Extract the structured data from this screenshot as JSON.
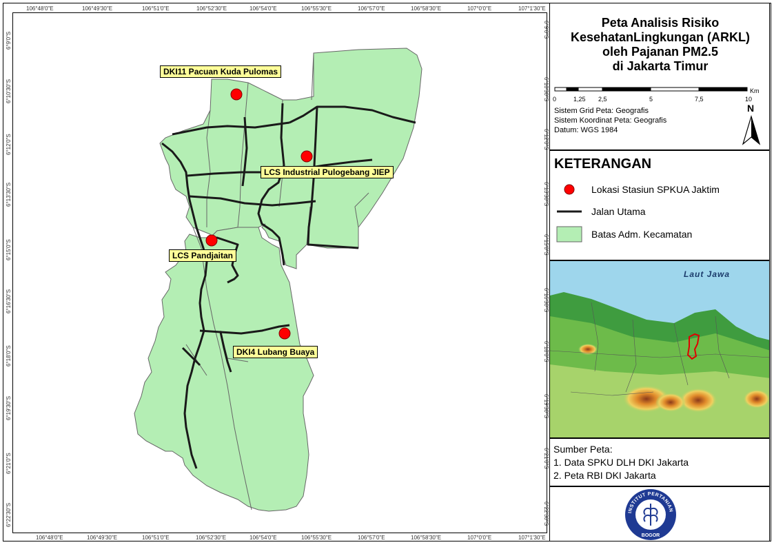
{
  "title": {
    "line1": "Peta Analisis Risiko",
    "line2": "KesehatanLingkungan (ARKL)",
    "line3": "oleh Pajanan PM2.5",
    "line4": "di Jakarta Timur"
  },
  "scale": {
    "ticks": [
      "0",
      "1,25",
      "2,5",
      "5",
      "7,5",
      "10"
    ],
    "unit": "Km"
  },
  "info": {
    "grid": "Sistem Grid Peta: Geografis",
    "coord": "Sistem Koordinat Peta: Geografis",
    "datum": "Datum: WGS 1984"
  },
  "north_label": "N",
  "legend": {
    "heading": "KETERANGAN",
    "station": "Lokasi Stasiun SPKUA Jaktim",
    "road": "Jalan Utama",
    "boundary": "Batas Adm. Kecamatan"
  },
  "inset": {
    "sea_label": "Laut Jawa"
  },
  "sources": {
    "heading": "Sumber Peta:",
    "item1": "1. Data SPKU DLH DKI Jakarta",
    "item2": "2. Peta RBI DKI Jakarta"
  },
  "logo_text": "INSTITUT PERTANIAN BOGOR",
  "stations": [
    {
      "label": "DKI11 Pacuan Kuda Pulomas"
    },
    {
      "label": "LCS Industrial Pulogebang JIEP"
    },
    {
      "label": "LCS Pandjaitan"
    },
    {
      "label": "DKI4 Lubang Buaya"
    }
  ],
  "lon_ticks": [
    "106°48'0\"E",
    "106°49'30\"E",
    "106°51'0\"E",
    "106°52'30\"E",
    "106°54'0\"E",
    "106°55'30\"E",
    "106°57'0\"E",
    "106°58'30\"E",
    "107°0'0\"E",
    "107°1'30\"E"
  ],
  "lat_ticks": [
    "6°9'0\"S",
    "6°10'30\"S",
    "6°12'0\"S",
    "6°13'30\"S",
    "6°15'0\"S",
    "6°16'30\"S",
    "6°18'0\"S",
    "6°19'30\"S",
    "6°21'0\"S",
    "6°22'30\"S"
  ],
  "colors": {
    "area_fill": "#b4eeb4",
    "station": "#ff0000",
    "label_bg": "#ffff99",
    "road": "#1a1a1a"
  }
}
